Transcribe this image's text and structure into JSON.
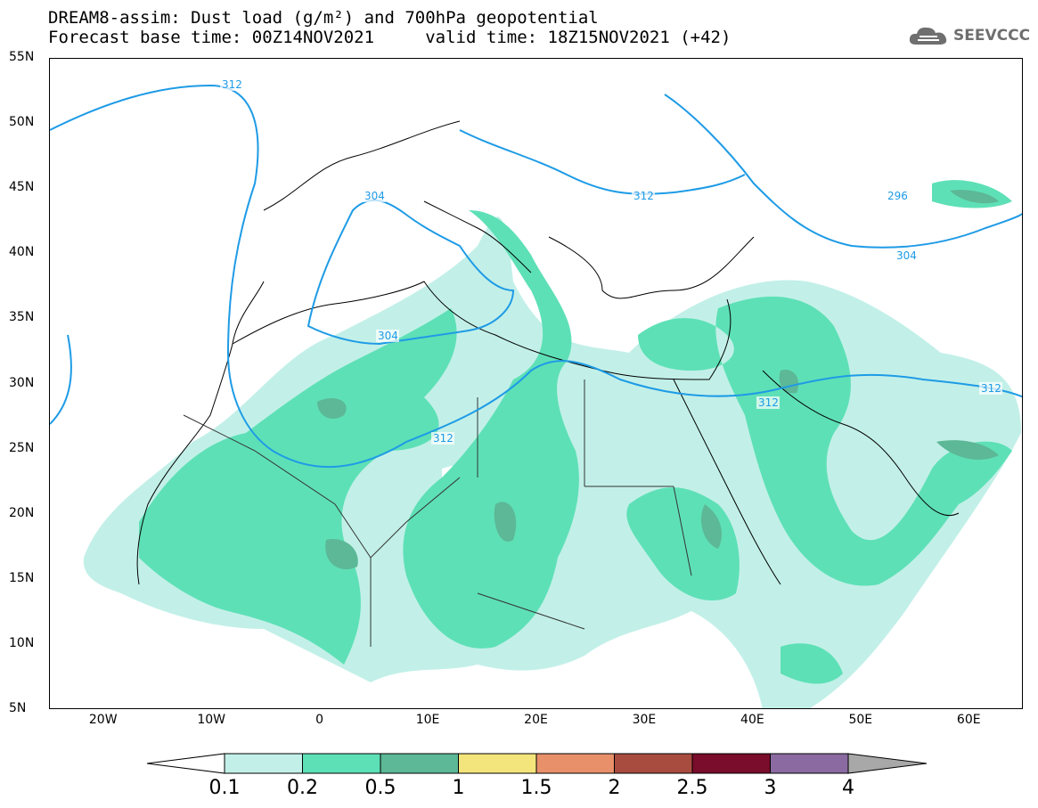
{
  "header": {
    "title_line1": "DREAM8-assim: Dust load (g/m²) and 700hPa geopotential",
    "title_line2": "Forecast base time: 00Z14NOV2021     valid time: 18Z15NOV2021 (+42)"
  },
  "logo": {
    "text": "SEEVCCC",
    "icon": "cloud-icon"
  },
  "map": {
    "lat_range": [
      5,
      55
    ],
    "lon_range": [
      -25,
      65
    ],
    "lat_labels": [
      "55N",
      "50N",
      "45N",
      "40N",
      "35N",
      "30N",
      "25N",
      "20N",
      "15N",
      "10N",
      "5N"
    ],
    "lon_labels": [
      "20W",
      "10W",
      "0",
      "10E",
      "20E",
      "30E",
      "40E",
      "50E",
      "60E"
    ],
    "geopotential_contour_labels": [
      "312",
      "304",
      "304",
      "312",
      "312",
      "312",
      "312",
      "296",
      "304"
    ],
    "contour_color": "#1e9be6"
  },
  "colorbar": {
    "ticks": [
      "0.1",
      "0.2",
      "0.5",
      "1",
      "1.5",
      "2",
      "2.5",
      "3",
      "4"
    ],
    "colors": [
      "#c2f0e8",
      "#5ee0b6",
      "#5cb896",
      "#f3e57c",
      "#e8906a",
      "#a84c40",
      "#7a0c2c",
      "#8a6aa0",
      "#a8a8a8"
    ]
  }
}
